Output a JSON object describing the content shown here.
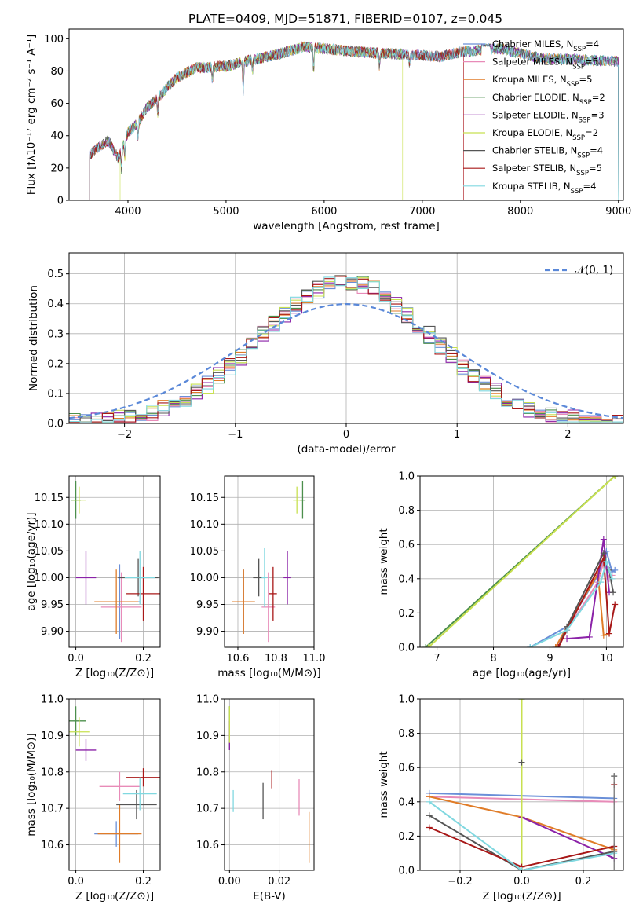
{
  "title": "PLATE=0409, MJD=51871, FIBERID=0107, z=0.045",
  "models": [
    {
      "label": "Chabrier MILES, N",
      "nssp": "=4",
      "color": "#6a8fd8"
    },
    {
      "label": "Salpeter MILES, N",
      "nssp": "=5",
      "color": "#e88bb8"
    },
    {
      "label": "Kroupa MILES, N",
      "nssp": "=5",
      "color": "#e07c28"
    },
    {
      "label": "Chabrier ELODIE, N",
      "nssp": "=2",
      "color": "#4c8f4c"
    },
    {
      "label": "Salpeter ELODIE, N",
      "nssp": "=3",
      "color": "#8b22a8"
    },
    {
      "label": "Kroupa ELODIE, N",
      "nssp": "=2",
      "color": "#c8e050"
    },
    {
      "label": "Chabrier STELIB, N",
      "nssp": "=4",
      "color": "#555555"
    },
    {
      "label": "Salpeter STELIB, N",
      "nssp": "=5",
      "color": "#a81818"
    },
    {
      "label": "Kroupa STELIB, N",
      "nssp": "=4",
      "color": "#80d8e0"
    }
  ],
  "ssp_sub": "SSP",
  "normal_label": "𝒩(0, 1)",
  "chart_data": [
    {
      "id": "spectrum",
      "type": "line",
      "xlabel": "wavelength [Angstrom, rest frame]",
      "ylabel": "Flux [fλ10⁻¹⁷ erg cm⁻² s⁻¹ A⁻¹]",
      "xlim": [
        3400,
        9050
      ],
      "ylim": [
        0,
        106
      ],
      "xticks": [
        4000,
        5000,
        6000,
        7000,
        8000,
        9000
      ],
      "yticks": [
        0,
        20,
        40,
        60,
        80,
        100
      ],
      "continuum": {
        "x": [
          3610,
          3700,
          3800,
          3900,
          4000,
          4100,
          4200,
          4300,
          4400,
          4500,
          4700,
          5000,
          5200,
          5500,
          5800,
          6000,
          6300,
          6600,
          6900,
          7200,
          7400,
          7600,
          7800,
          8200,
          8600,
          9000
        ],
        "y": [
          28,
          33,
          37,
          26,
          42,
          48,
          58,
          63,
          70,
          76,
          82,
          83,
          86,
          90,
          95,
          94,
          92,
          91,
          90,
          89,
          92,
          93,
          94,
          88,
          87,
          86
        ]
      },
      "model_ends": [
        9000,
        7420,
        9000,
        9000,
        9000,
        6800,
        9000,
        7420,
        9000
      ],
      "model_starts": [
        3610,
        3610,
        3610,
        3610,
        3610,
        3920,
        3610,
        3610,
        3610
      ],
      "absorption": [
        [
          3934,
          12
        ],
        [
          3968,
          10
        ],
        [
          4102,
          8
        ],
        [
          4304,
          10
        ],
        [
          4861,
          8
        ],
        [
          5175,
          18
        ],
        [
          5270,
          6
        ],
        [
          5893,
          14
        ],
        [
          6563,
          8
        ],
        [
          6870,
          6
        ]
      ]
    },
    {
      "id": "residuals",
      "type": "histogram",
      "xlabel": "(data-model)/error",
      "ylabel": "Normed distribution",
      "xlim": [
        -2.5,
        2.5
      ],
      "ylim": [
        0,
        0.57
      ],
      "xticks": [
        -2,
        -1,
        0,
        1,
        2
      ],
      "yticks": [
        0.0,
        0.1,
        0.2,
        0.3,
        0.4,
        0.5
      ],
      "grid": true,
      "legend": "top-right",
      "bin_width": 0.1,
      "bin_start": -2.5
    },
    {
      "id": "age-z",
      "type": "scatter",
      "xlabel": "Z [log₁₀(Z/Z⊙)]",
      "ylabel": "age  [log₁₀(age/yr)]",
      "xlim": [
        -0.02,
        0.25
      ],
      "ylim": [
        9.87,
        10.19
      ],
      "xticks": [
        0.0,
        0.2
      ],
      "yticks": [
        9.9,
        9.95,
        10.0,
        10.05,
        10.1,
        10.15
      ],
      "points": [
        {
          "x": 0.13,
          "y": 9.955,
          "ex": 0.06,
          "ey": 0.07,
          "model": 0
        },
        {
          "x": 0.135,
          "y": 9.945,
          "ex": 0.06,
          "ey": 0.065,
          "model": 1
        },
        {
          "x": 0.12,
          "y": 9.955,
          "ex": 0.065,
          "ey": 0.06,
          "model": 2
        },
        {
          "x": 0.0,
          "y": 10.145,
          "ex": 0.015,
          "ey": 0.035,
          "model": 3
        },
        {
          "x": 0.03,
          "y": 10.0,
          "ex": 0.03,
          "ey": 0.05,
          "model": 4
        },
        {
          "x": 0.01,
          "y": 10.145,
          "ex": 0.02,
          "ey": 0.025,
          "model": 5
        },
        {
          "x": 0.185,
          "y": 10.0,
          "ex": 0.06,
          "ey": 0.035,
          "model": 6
        },
        {
          "x": 0.2,
          "y": 9.97,
          "ex": 0.05,
          "ey": 0.05,
          "model": 7
        },
        {
          "x": 0.19,
          "y": 10.0,
          "ex": 0.045,
          "ey": 0.05,
          "model": 8
        }
      ]
    },
    {
      "id": "age-mass",
      "type": "scatter",
      "xlabel": "mass [log₁₀(M/M⊙)]",
      "ylabel": "",
      "xlim": [
        10.53,
        11.0
      ],
      "ylim": [
        9.87,
        10.19
      ],
      "xticks": [
        10.6,
        10.8,
        11.0
      ],
      "yticks": [
        9.9,
        9.95,
        10.0,
        10.05,
        10.1,
        10.15
      ],
      "points": [
        {
          "x": 10.63,
          "y": 9.955,
          "ex": 0.05,
          "ey": 0.06,
          "model": 0
        },
        {
          "x": 10.76,
          "y": 9.945,
          "ex": 0.035,
          "ey": 0.065,
          "model": 1
        },
        {
          "x": 10.63,
          "y": 9.955,
          "ex": 0.06,
          "ey": 0.06,
          "model": 2
        },
        {
          "x": 10.94,
          "y": 10.145,
          "ex": 0.015,
          "ey": 0.035,
          "model": 3
        },
        {
          "x": 10.86,
          "y": 10.0,
          "ex": 0.02,
          "ey": 0.05,
          "model": 4
        },
        {
          "x": 10.91,
          "y": 10.145,
          "ex": 0.02,
          "ey": 0.025,
          "model": 5
        },
        {
          "x": 10.71,
          "y": 10.0,
          "ex": 0.03,
          "ey": 0.035,
          "model": 6
        },
        {
          "x": 10.785,
          "y": 9.97,
          "ex": 0.02,
          "ey": 0.05,
          "model": 7
        },
        {
          "x": 10.74,
          "y": 10.0,
          "ex": 0.015,
          "ey": 0.055,
          "model": 8
        }
      ]
    },
    {
      "id": "weight-age",
      "type": "line",
      "xlabel": "age  [log₁₀(age/yr)]",
      "ylabel": "mass weight",
      "xlim": [
        6.7,
        10.3
      ],
      "ylim": [
        0,
        1.0
      ],
      "xticks": [
        7,
        8,
        9,
        10
      ],
      "yticks": [
        0.0,
        0.2,
        0.4,
        0.6,
        0.8,
        1.0
      ],
      "series": [
        {
          "model": 0,
          "x": [
            8.65,
            9.3,
            9.85,
            10.0,
            10.1,
            10.15
          ],
          "y": [
            0.0,
            0.12,
            0.42,
            0.56,
            0.44,
            0.45
          ]
        },
        {
          "model": 1,
          "x": [
            9.1,
            9.3,
            9.85,
            9.95,
            10.05,
            10.1
          ],
          "y": [
            0.0,
            0.1,
            0.38,
            0.5,
            0.4,
            0.42
          ]
        },
        {
          "model": 2,
          "x": [
            9.1,
            9.3,
            9.85,
            9.95,
            10.05
          ],
          "y": [
            0.0,
            0.12,
            0.43,
            0.07,
            0.08
          ]
        },
        {
          "model": 3,
          "x": [
            6.8,
            10.15
          ],
          "y": [
            0.0,
            1.0
          ]
        },
        {
          "model": 4,
          "x": [
            9.3,
            9.7,
            9.95,
            10.05
          ],
          "y": [
            0.05,
            0.06,
            0.63,
            0.32
          ]
        },
        {
          "model": 5,
          "x": [
            6.85,
            10.15
          ],
          "y": [
            0.0,
            1.0
          ]
        },
        {
          "model": 6,
          "x": [
            9.15,
            9.3,
            9.95,
            10.05,
            10.12
          ],
          "y": [
            0.0,
            0.12,
            0.55,
            0.45,
            0.32
          ]
        },
        {
          "model": 7,
          "x": [
            9.15,
            9.3,
            9.95,
            10.05,
            10.15
          ],
          "y": [
            0.0,
            0.1,
            0.52,
            0.08,
            0.25
          ]
        },
        {
          "model": 8,
          "x": [
            8.65,
            9.3,
            9.9,
            10.0,
            10.1
          ],
          "y": [
            0.0,
            0.1,
            0.38,
            0.5,
            0.4
          ]
        }
      ]
    },
    {
      "id": "mass-z",
      "type": "scatter",
      "xlabel": "Z [log₁₀(Z/Z⊙)]",
      "ylabel": "mass [log₁₀(M/M⊙)]",
      "xlim": [
        -0.02,
        0.25
      ],
      "ylim": [
        10.53,
        11.0
      ],
      "xticks": [
        0.0,
        0.2
      ],
      "yticks": [
        10.6,
        10.7,
        10.8,
        10.9,
        11.0
      ],
      "points": [
        {
          "x": 0.12,
          "y": 10.63,
          "ex": 0.065,
          "ey": 0.035,
          "model": 0
        },
        {
          "x": 0.13,
          "y": 10.76,
          "ex": 0.06,
          "ey": 0.04,
          "model": 1
        },
        {
          "x": 0.13,
          "y": 10.63,
          "ex": 0.065,
          "ey": 0.08,
          "model": 2
        },
        {
          "x": 0.0,
          "y": 10.94,
          "ex": 0.03,
          "ey": 0.04,
          "model": 3
        },
        {
          "x": 0.03,
          "y": 10.86,
          "ex": 0.03,
          "ey": 0.03,
          "model": 4
        },
        {
          "x": 0.01,
          "y": 10.91,
          "ex": 0.03,
          "ey": 0.04,
          "model": 5
        },
        {
          "x": 0.18,
          "y": 10.71,
          "ex": 0.06,
          "ey": 0.04,
          "model": 6
        },
        {
          "x": 0.2,
          "y": 10.785,
          "ex": 0.05,
          "ey": 0.025,
          "model": 7
        },
        {
          "x": 0.19,
          "y": 10.74,
          "ex": 0.05,
          "ey": 0.045,
          "model": 8
        }
      ]
    },
    {
      "id": "mass-ebv",
      "type": "scatter",
      "xlabel": "E(B-V)",
      "ylabel": "",
      "xlim": [
        -0.002,
        0.034
      ],
      "ylim": [
        10.53,
        11.0
      ],
      "xticks": [
        0.0,
        0.02
      ],
      "yticks": [
        10.6,
        10.7,
        10.8,
        10.9,
        11.0
      ],
      "points": [
        {
          "x": 0.032,
          "y": 10.62,
          "ex": 0.0,
          "ey": 0.07,
          "model": 2
        },
        {
          "x": 0.0,
          "y": 10.92,
          "ex": 0.0,
          "ey": 0.06,
          "model": 3
        },
        {
          "x": 0.0,
          "y": 10.9,
          "ex": 0.0,
          "ey": 0.04,
          "model": 4
        },
        {
          "x": 0.0,
          "y": 10.93,
          "ex": 0.0,
          "ey": 0.05,
          "model": 5
        },
        {
          "x": 0.0135,
          "y": 10.72,
          "ex": 0.0,
          "ey": 0.05,
          "model": 6
        },
        {
          "x": 0.017,
          "y": 10.78,
          "ex": 0.0,
          "ey": 0.025,
          "model": 7
        },
        {
          "x": 0.0015,
          "y": 10.72,
          "ex": 0.0,
          "ey": 0.03,
          "model": 8
        },
        {
          "x": 0.028,
          "y": 10.73,
          "ex": 0.0,
          "ey": 0.05,
          "model": 1
        }
      ]
    },
    {
      "id": "weight-z",
      "type": "line",
      "xlabel": "Z [log₁₀(Z/Z⊙)]",
      "ylabel": "mass weight",
      "xlim": [
        -0.33,
        0.33
      ],
      "ylim": [
        0,
        1.0
      ],
      "xticks": [
        -0.2,
        0.0,
        0.2
      ],
      "yticks": [
        0.0,
        0.2,
        0.4,
        0.6,
        0.8,
        1.0
      ],
      "series": [
        {
          "model": 0,
          "x": [
            -0.3,
            0.3
          ],
          "y": [
            0.45,
            0.42
          ]
        },
        {
          "model": 1,
          "x": [
            -0.3,
            0.3
          ],
          "y": [
            0.43,
            0.4
          ]
        },
        {
          "model": 2,
          "x": [
            -0.3,
            0.0,
            0.3
          ],
          "y": [
            0.43,
            0.31,
            0.12
          ]
        },
        {
          "model": 3,
          "x": [
            0.0,
            0.0
          ],
          "y": [
            0.0,
            1.0
          ]
        },
        {
          "model": 4,
          "x": [
            0.0,
            0.3
          ],
          "y": [
            0.31,
            0.07
          ]
        },
        {
          "model": 5,
          "x": [
            0.0,
            0.0
          ],
          "y": [
            0.0,
            1.0
          ]
        },
        {
          "model": 6,
          "x": [
            -0.3,
            0.0,
            0.3
          ],
          "y": [
            0.32,
            0.0,
            0.11
          ]
        },
        {
          "model": 7,
          "x": [
            -0.3,
            0.0,
            0.3
          ],
          "y": [
            0.25,
            0.02,
            0.14
          ]
        },
        {
          "model": 8,
          "x": [
            -0.3,
            0.0,
            0.3
          ],
          "y": [
            0.4,
            0.0,
            0.1
          ]
        }
      ],
      "markers": [
        {
          "x": 0.0,
          "y": 0.63,
          "model": 6
        },
        {
          "x": 0.3,
          "y": 0.55,
          "model": 6
        },
        {
          "x": 0.3,
          "y": 0.5,
          "model": 7
        }
      ]
    }
  ]
}
